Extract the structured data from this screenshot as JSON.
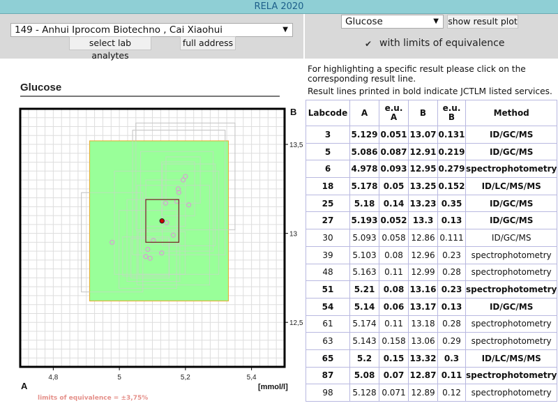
{
  "window": {
    "title": "RELA 2020"
  },
  "lab_select": {
    "value": "149 - Anhui Iprocom Biotechno , Cai Xiaohui"
  },
  "buttons": {
    "select_lab_analytes": "select lab analytes",
    "full_address": "full address",
    "show_result_plot": "show result plot"
  },
  "analyte_select": {
    "value": "Glucose"
  },
  "equivalence_checkbox": {
    "label": "with limits of equivalence",
    "checked": true
  },
  "info": {
    "line1": "For highlighting a specific result please click on the",
    "line2": "corresponding result line.",
    "line3": "Result lines printed in bold indicate JCTLM listed services."
  },
  "chart": {
    "title": "Glucose",
    "axis_b_label": "B",
    "axis_a_label": "A",
    "unit_label": "[mmol/l]",
    "limits_note": "limits of equivalence = ±3,75%",
    "x_ticks": [
      "4,8",
      "5",
      "5,2",
      "5,4"
    ],
    "y_ticks": [
      "13,5",
      "13",
      "12,5"
    ]
  },
  "chart_data": {
    "type": "scatter",
    "xlabel": "A",
    "ylabel": "B",
    "unit": "mmol/l",
    "xlim": [
      4.7,
      5.5
    ],
    "ylim": [
      12.25,
      13.7
    ],
    "grid": true,
    "equivalence_region": {
      "x": [
        4.91,
        5.33
      ],
      "y": [
        12.62,
        13.52
      ]
    },
    "target": {
      "x": 5.129,
      "y": 13.07,
      "box_x": [
        5.08,
        5.18
      ],
      "box_y": [
        12.95,
        13.19
      ]
    }
  },
  "table": {
    "headers": [
      "Labcode",
      "A",
      "e.u.\nA",
      "B",
      "e.u.\nB",
      "Method"
    ],
    "rows": [
      {
        "labcode": "3",
        "a": "5.129",
        "eua": "0.051",
        "b": "13.07",
        "eub": "0.131",
        "method": "ID/GC/MS",
        "bold": true
      },
      {
        "labcode": "5",
        "a": "5.086",
        "eua": "0.087",
        "b": "12.91",
        "eub": "0.219",
        "method": "ID/GC/MS",
        "bold": true
      },
      {
        "labcode": "6",
        "a": "4.978",
        "eua": "0.093",
        "b": "12.95",
        "eub": "0.279",
        "method": "spectrophotometry",
        "bold": true
      },
      {
        "labcode": "18",
        "a": "5.178",
        "eua": "0.05",
        "b": "13.25",
        "eub": "0.152",
        "method": "ID/LC/MS/MS",
        "bold": true
      },
      {
        "labcode": "25",
        "a": "5.18",
        "eua": "0.14",
        "b": "13.23",
        "eub": "0.35",
        "method": "ID/GC/MS",
        "bold": true
      },
      {
        "labcode": "27",
        "a": "5.193",
        "eua": "0.052",
        "b": "13.3",
        "eub": "0.13",
        "method": "ID/GC/MS",
        "bold": true
      },
      {
        "labcode": "30",
        "a": "5.093",
        "eua": "0.058",
        "b": "12.86",
        "eub": "0.111",
        "method": "ID/GC/MS",
        "bold": false
      },
      {
        "labcode": "39",
        "a": "5.103",
        "eua": "0.08",
        "b": "12.96",
        "eub": "0.23",
        "method": "spectrophotometry",
        "bold": false
      },
      {
        "labcode": "48",
        "a": "5.163",
        "eua": "0.11",
        "b": "12.99",
        "eub": "0.28",
        "method": "spectrophotometry",
        "bold": false
      },
      {
        "labcode": "51",
        "a": "5.21",
        "eua": "0.08",
        "b": "13.16",
        "eub": "0.23",
        "method": "spectrophotometry",
        "bold": true
      },
      {
        "labcode": "54",
        "a": "5.14",
        "eua": "0.06",
        "b": "13.17",
        "eub": "0.13",
        "method": "ID/GC/MS",
        "bold": true
      },
      {
        "labcode": "61",
        "a": "5.174",
        "eua": "0.11",
        "b": "13.18",
        "eub": "0.28",
        "method": "spectrophotometry",
        "bold": false
      },
      {
        "labcode": "63",
        "a": "5.143",
        "eua": "0.158",
        "b": "13.06",
        "eub": "0.29",
        "method": "spectrophotometry",
        "bold": false
      },
      {
        "labcode": "65",
        "a": "5.2",
        "eua": "0.15",
        "b": "13.32",
        "eub": "0.3",
        "method": "ID/LC/MS/MS",
        "bold": true
      },
      {
        "labcode": "87",
        "a": "5.08",
        "eua": "0.07",
        "b": "12.87",
        "eub": "0.11",
        "method": "spectrophotometry",
        "bold": true
      },
      {
        "labcode": "98",
        "a": "5.128",
        "eua": "0.071",
        "b": "12.89",
        "eub": "0.12",
        "method": "spectrophotometry",
        "bold": false
      }
    ]
  },
  "colors": {
    "equivalence_fill": "#99ff99",
    "titlebar": "#8fcfd5",
    "table_border": "#b8b8e0",
    "target_dot": "#cc0000",
    "result_point": "#d2a6cf"
  }
}
